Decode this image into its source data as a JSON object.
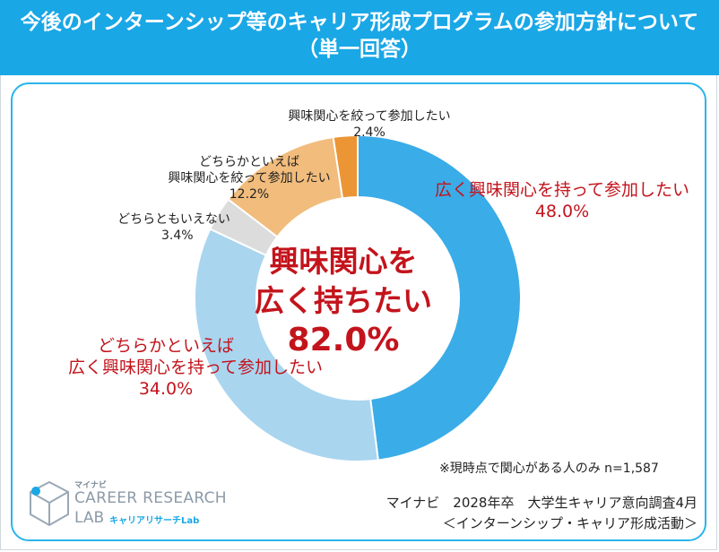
{
  "header": {
    "title_line1": "今後のインターンシップ等のキャリア形成プログラムの参加方針について",
    "title_line2": "（単一回答）"
  },
  "center": {
    "line1": "興味関心を",
    "line2": "広く持ちたい",
    "line3": "82.0%"
  },
  "note": "※現時点で関心がある人のみ n=1,587",
  "source": {
    "line1": "マイナビ　2028年卒　大学生キャリア意向調査4月",
    "line2": "＜インターンシップ・キャリア形成活動＞"
  },
  "logo": {
    "brand_small": "マイナビ",
    "line1": "CAREER RESEARCH",
    "line2": "LAB",
    "sub": "キャリアリサーチLab"
  },
  "colors": {
    "header": "#1aa7e6",
    "border": "#29b5ea",
    "accent_red": "#c3141c"
  },
  "chart_data": {
    "type": "pie",
    "style": "donut",
    "categories": [
      "広く興味関心を持って参加したい",
      "どちらかといえば広く興味関心を持って参加したい",
      "どちらともいえない",
      "どちらかといえば興味関心を絞って参加したい",
      "興味関心を絞って参加したい"
    ],
    "values": [
      48.0,
      34.0,
      3.4,
      12.2,
      2.4
    ],
    "colors": [
      "#3aace8",
      "#a9d5ef",
      "#dcdcdc",
      "#f1bc7c",
      "#ec9535"
    ],
    "labels": [
      {
        "lines": [
          "広く興味関心を持って参加したい",
          "48.0%"
        ],
        "style": "red"
      },
      {
        "lines": [
          "どちらかといえば",
          "広く興味関心を持って参加したい",
          "34.0%"
        ],
        "style": "red"
      },
      {
        "lines": [
          "どちらともいえない",
          "3.4%"
        ],
        "style": "dark"
      },
      {
        "lines": [
          "どちらかといえば",
          "興味関心を絞って参加したい",
          "12.2%"
        ],
        "style": "dark"
      },
      {
        "lines": [
          "興味関心を絞って参加したい",
          "2.4%"
        ],
        "style": "dark"
      }
    ]
  }
}
